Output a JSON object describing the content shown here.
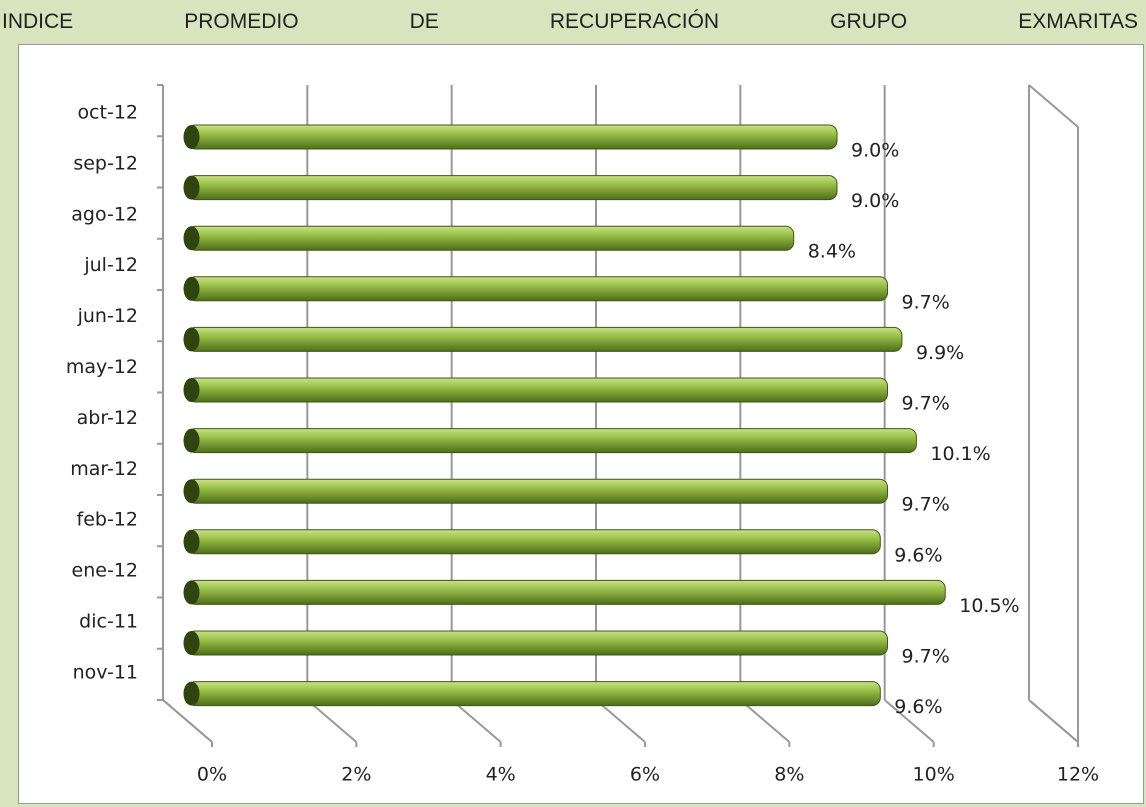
{
  "chart_data": {
    "type": "bar",
    "orientation": "horizontal",
    "style": "3d-cylinder",
    "title": "INDICE PROMEDIO DE RECUPERACIÓN GRUPO EXMARITAS",
    "categories": [
      "oct-12",
      "sep-12",
      "ago-12",
      "jul-12",
      "jun-12",
      "may-12",
      "abr-12",
      "mar-12",
      "feb-12",
      "ene-12",
      "dic-11",
      "nov-11"
    ],
    "values": [
      9.0,
      9.0,
      8.4,
      9.7,
      9.9,
      9.7,
      10.1,
      9.7,
      9.6,
      10.5,
      9.7,
      9.6
    ],
    "value_labels": [
      "9.0%",
      "9.0%",
      "8.4%",
      "9.7%",
      "9.9%",
      "9.7%",
      "10.1%",
      "9.7%",
      "9.6%",
      "10.5%",
      "9.7%",
      "9.6%"
    ],
    "color": "#8db33a",
    "xlim": [
      0,
      12
    ],
    "xticks": [
      {
        "value": 0,
        "label": "0%"
      },
      {
        "value": 2,
        "label": "2%"
      },
      {
        "value": 4,
        "label": "4%"
      },
      {
        "value": 6,
        "label": "6%"
      },
      {
        "value": 8,
        "label": "8%"
      },
      {
        "value": 10,
        "label": "10%"
      },
      {
        "value": 12,
        "label": "12%"
      }
    ],
    "grid": true
  }
}
